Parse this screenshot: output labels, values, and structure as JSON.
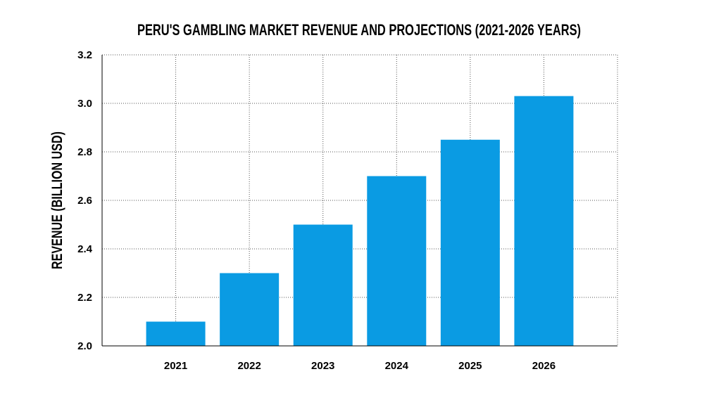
{
  "chart_data": {
    "type": "bar",
    "title": "PERU'S GAMBLING MARKET REVENUE AND PROJECTIONS (2021-2026 YEARS)",
    "xlabel": "",
    "ylabel": "REVENUE (BILLION USD)",
    "categories": [
      "2021",
      "2022",
      "2023",
      "2024",
      "2025",
      "2026"
    ],
    "values": [
      2.1,
      2.3,
      2.5,
      2.7,
      2.85,
      3.03
    ],
    "ylim": [
      2.0,
      3.2
    ],
    "yticks": [
      2.0,
      2.2,
      2.4,
      2.6,
      2.8,
      3.0,
      3.2
    ],
    "ytick_labels": [
      "2.0",
      "2.2",
      "2.4",
      "2.6",
      "2.8",
      "3.0",
      "3.2"
    ],
    "grid": true,
    "bar_color": "#0a9be3",
    "grid_color": "#555555",
    "axis_color": "#000000"
  }
}
